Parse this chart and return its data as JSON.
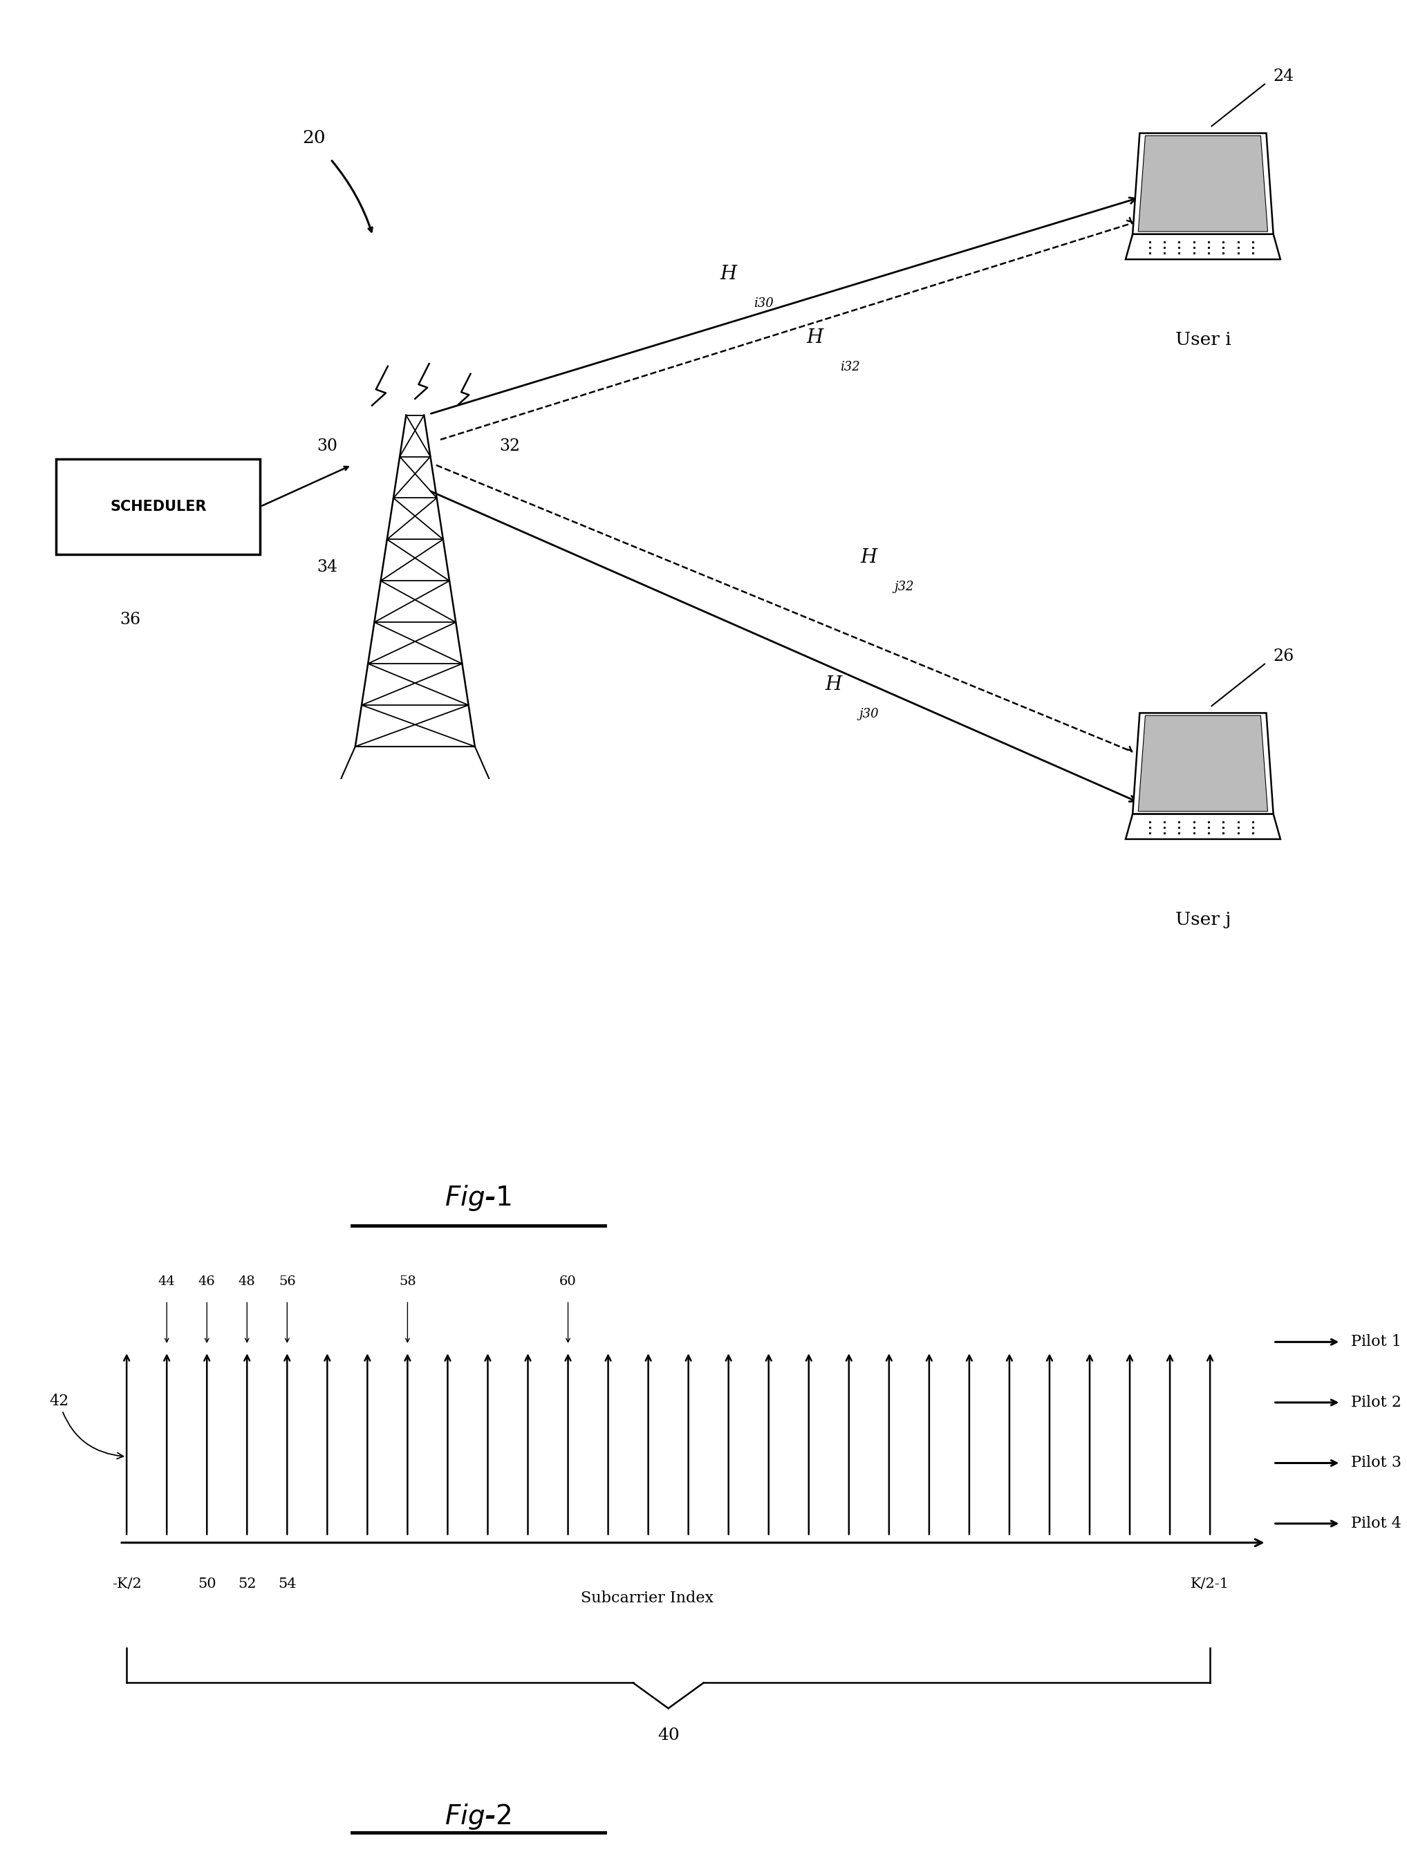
{
  "fig1": {
    "scheduler_label": "SCHEDULER",
    "label_36": "36",
    "label_20": "20",
    "label_30": "30",
    "label_32": "32",
    "label_34": "34",
    "label_24": "24",
    "label_26": "26",
    "user_i": "User i",
    "user_j": "User j",
    "Hi30": "H",
    "Hi30_sub": "i30",
    "Hi32": "H",
    "Hi32_sub": "i32",
    "Hj32": "H",
    "Hj32_sub": "j32",
    "Hj30": "H",
    "Hj30_sub": "j30",
    "fig_title": "Fig-1"
  },
  "fig2": {
    "fig_title": "Fig-2",
    "pilot1": "Pilot 1",
    "pilot2": "Pilot 2",
    "pilot3": "Pilot 3",
    "pilot4": "Pilot 4",
    "km2": "-K/2",
    "km21": "K/2-1",
    "subcarrier_index": "Subcarrier Index",
    "label_40": "40",
    "label_42": "42",
    "label_44": "44",
    "label_46": "46",
    "label_48": "48",
    "label_56": "56",
    "label_58": "58",
    "label_60": "60",
    "label_50": "50",
    "label_52": "52",
    "label_54": "54"
  },
  "colors": {
    "background": "#ffffff",
    "black": "#000000"
  }
}
